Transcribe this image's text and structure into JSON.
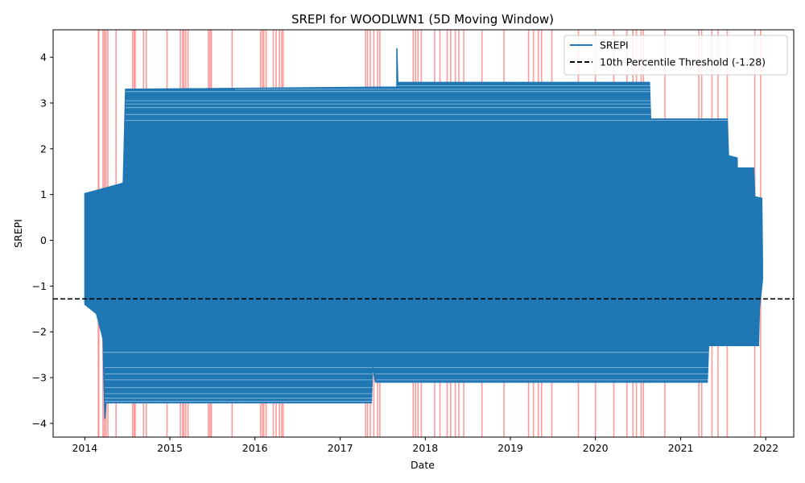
{
  "chart_data": {
    "type": "line",
    "title": "SREPI for WOODLWN1 (5D Moving Window)",
    "xlabel": "Date",
    "ylabel": "SREPI",
    "x_axis": {
      "scale": "time",
      "range": [
        "2013-08-18",
        "2022-05-01"
      ]
    },
    "y_axis": {
      "range": [
        -4.3,
        4.6
      ]
    },
    "x_ticks": [
      {
        "date": "2014-01-01",
        "label": "2014"
      },
      {
        "date": "2015-01-01",
        "label": "2015"
      },
      {
        "date": "2016-01-01",
        "label": "2016"
      },
      {
        "date": "2017-01-01",
        "label": "2017"
      },
      {
        "date": "2018-01-01",
        "label": "2018"
      },
      {
        "date": "2019-01-01",
        "label": "2019"
      },
      {
        "date": "2020-01-01",
        "label": "2020"
      },
      {
        "date": "2021-01-01",
        "label": "2021"
      },
      {
        "date": "2022-01-01",
        "label": "2022"
      }
    ],
    "y_ticks": [
      {
        "value": 4,
        "label": "4"
      },
      {
        "value": 3,
        "label": "3"
      },
      {
        "value": 2,
        "label": "2"
      },
      {
        "value": 1,
        "label": "1"
      },
      {
        "value": 0,
        "label": "0"
      },
      {
        "value": -1,
        "label": "−1"
      },
      {
        "value": -2,
        "label": "−2"
      },
      {
        "value": -3,
        "label": "−3"
      },
      {
        "value": -4,
        "label": "−4"
      }
    ],
    "grid": false,
    "legend_position": "top-right",
    "legend": [
      {
        "label": "SREPI",
        "style": "solid",
        "color": "#1f77b4"
      },
      {
        "label": "10th Percentile Threshold (-1.28)",
        "style": "dashed",
        "color": "#000000"
      }
    ],
    "threshold": {
      "value": -1.28,
      "color": "#000000"
    },
    "series_color": "#1f77b4",
    "span_color": "#ff8a8a",
    "series": [
      {
        "name": "SREPI",
        "note_upper_envelope": [
          [
            "2014-01-01",
            1.02
          ],
          [
            "2014-06-15",
            1.25
          ],
          [
            "2014-06-25",
            3.3
          ],
          [
            "2017-09-01",
            3.35
          ],
          [
            "2017-09-01",
            4.2
          ],
          [
            "2017-09-05",
            3.45
          ],
          [
            "2020-08-20",
            3.45
          ],
          [
            "2020-08-25",
            2.65
          ],
          [
            "2021-07-20",
            2.65
          ],
          [
            "2021-07-25",
            1.85
          ],
          [
            "2021-08-31",
            1.8
          ],
          [
            "2021-09-01",
            1.58
          ],
          [
            "2021-11-10",
            1.58
          ],
          [
            "2021-11-15",
            0.95
          ],
          [
            "2021-12-15",
            0.92
          ],
          [
            "2021-12-18",
            -0.5
          ]
        ],
        "note_lower_envelope": [
          [
            "2014-01-01",
            -1.4
          ],
          [
            "2014-02-20",
            -1.6
          ],
          [
            "2014-03-20",
            -2.15
          ],
          [
            "2014-03-28",
            -3.9
          ],
          [
            "2014-04-02",
            -3.55
          ],
          [
            "2017-05-15",
            -3.55
          ],
          [
            "2017-05-20",
            -2.75
          ],
          [
            "2017-06-01",
            -3.1
          ],
          [
            "2021-04-25",
            -3.1
          ],
          [
            "2021-05-01",
            -2.3
          ],
          [
            "2021-12-01",
            -2.3
          ],
          [
            "2021-12-05",
            -1.5
          ],
          [
            "2021-12-18",
            -0.85
          ]
        ],
        "upper_bands": [
          3.45,
          3.38,
          3.3,
          3.25,
          3.05,
          2.98,
          2.9,
          2.75,
          2.62
        ],
        "lower_bands": [
          -2.45,
          -2.78,
          -2.92,
          -3.05,
          -3.22,
          -3.35,
          -3.45,
          -3.52
        ]
      }
    ],
    "highlight_dates": [
      "2014-02-28",
      "2014-03-02",
      "2014-03-20",
      "2014-03-26",
      "2014-04-02",
      "2014-04-10",
      "2014-05-15",
      "2014-07-25",
      "2014-08-01",
      "2014-08-05",
      "2014-09-10",
      "2014-09-22",
      "2014-12-20",
      "2015-02-15",
      "2015-02-25",
      "2015-03-02",
      "2015-03-10",
      "2015-03-20",
      "2015-06-15",
      "2015-06-22",
      "2015-06-28",
      "2015-09-25",
      "2016-01-25",
      "2016-02-02",
      "2016-02-08",
      "2016-02-18",
      "2016-03-20",
      "2016-04-01",
      "2016-04-15",
      "2016-04-25",
      "2016-05-01",
      "2017-04-20",
      "2017-04-28",
      "2017-05-10",
      "2017-05-25",
      "2017-06-10",
      "2017-06-20",
      "2017-11-10",
      "2017-11-20",
      "2017-12-01",
      "2017-12-15",
      "2018-02-10",
      "2018-03-05",
      "2018-04-05",
      "2018-04-20",
      "2018-05-10",
      "2018-05-25",
      "2018-06-15",
      "2018-09-01",
      "2018-12-05",
      "2019-03-20",
      "2019-04-10",
      "2019-05-01",
      "2019-05-15",
      "2019-06-28",
      "2019-10-20",
      "2020-01-01",
      "2020-03-20",
      "2020-05-15",
      "2020-06-10",
      "2020-06-25",
      "2020-07-15",
      "2020-07-25",
      "2020-10-25",
      "2021-03-20",
      "2021-04-01",
      "2021-05-15",
      "2021-06-10",
      "2021-07-20",
      "2021-11-15",
      "2021-12-10"
    ]
  }
}
